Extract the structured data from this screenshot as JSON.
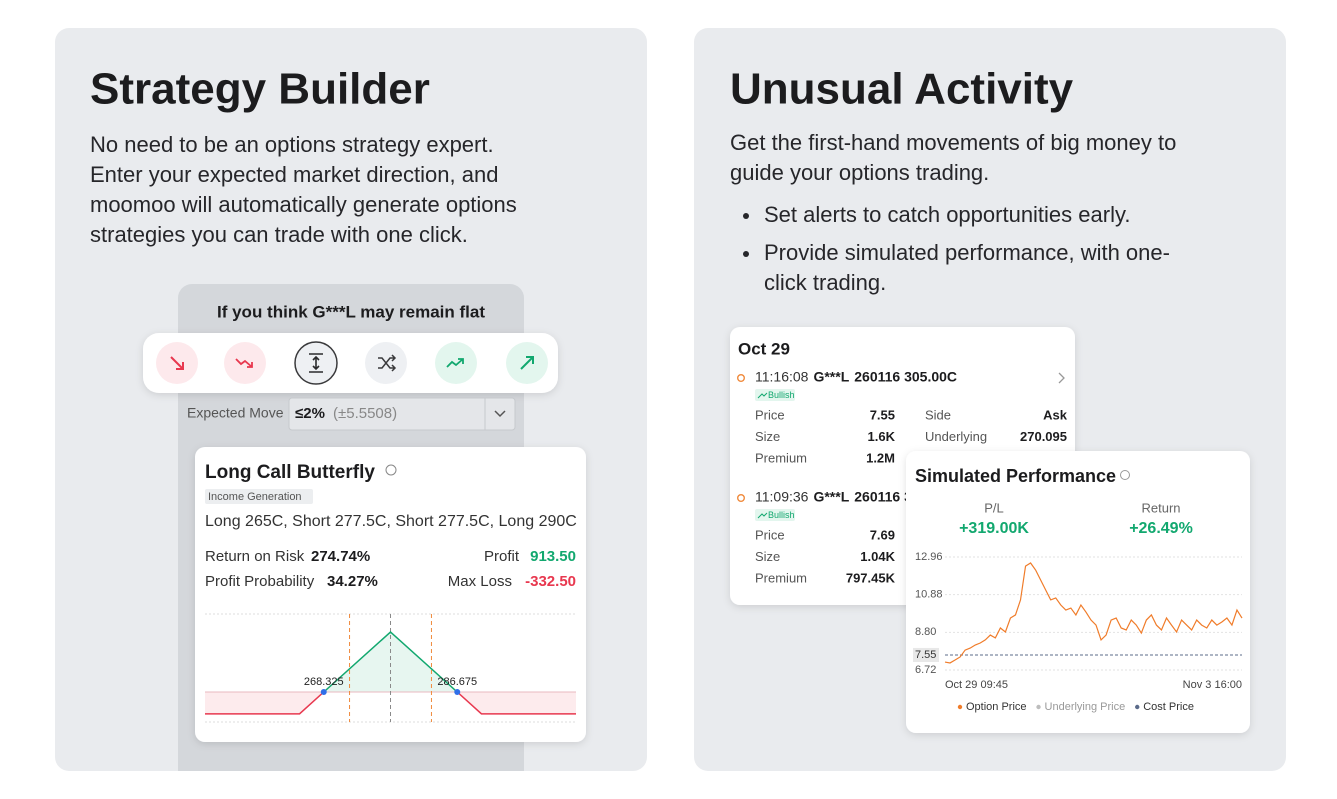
{
  "strategy_builder": {
    "title": "Strategy Builder",
    "description": [
      "No need to be an options strategy expert.",
      "Enter your expected market direction, and",
      "moomoo will automatically generate options",
      "strategies you can trade with one click."
    ],
    "prompt": "If you think G***L may remain flat",
    "expected_move": {
      "label": "Expected Move",
      "value": "≤2%",
      "detail": "(±5.5508)"
    },
    "strategy": {
      "name": "Long Call Butterfly",
      "tag": "Income Generation",
      "legs": "Long 265C, Short 277.5C, Short 277.5C, Long 290C",
      "stats": [
        {
          "label": "Return on Risk",
          "value": "274.74%"
        },
        {
          "label": "Profit",
          "value": "913.50"
        },
        {
          "label": "Profit Probability",
          "value": "34.27%"
        },
        {
          "label": "Max Loss",
          "value": "-332.50"
        }
      ]
    }
  },
  "unusual_activity": {
    "title": "Unusual Activity",
    "description": [
      "Get the first-hand movements of big money to",
      "guide your options trading."
    ],
    "bullets": [
      [
        "Set alerts to catch opportunities early."
      ],
      [
        "Provide simulated performance, with one-",
        "click trading."
      ]
    ],
    "feed": {
      "date": "Oct 29",
      "entries": [
        {
          "time": "11:16:08",
          "ticker": "G***L",
          "contract": "260116 305.00C",
          "tag": "Bullish",
          "left": [
            {
              "label": "Price",
              "value": "7.55"
            },
            {
              "label": "Size",
              "value": "1.6K"
            },
            {
              "label": "Premium",
              "value": "1.2M"
            }
          ],
          "right": [
            {
              "label": "Side",
              "value": "Ask"
            },
            {
              "label": "Underlying",
              "value": "270.095"
            }
          ]
        },
        {
          "time": "11:09:36",
          "ticker": "G***L",
          "contract": "260116 3",
          "tag": "Bullish",
          "left": [
            {
              "label": "Price",
              "value": "7.69"
            },
            {
              "label": "Size",
              "value": "1.04K"
            },
            {
              "label": "Premium",
              "value": "797.45K"
            }
          ]
        }
      ]
    },
    "performance": {
      "title": "Simulated Performance",
      "metrics": [
        {
          "label": "P/L",
          "value": "+319.00K"
        },
        {
          "label": "Return",
          "value": "+26.49%"
        }
      ]
    }
  },
  "chart_data": [
    {
      "type": "line",
      "x": [
        252,
        265,
        268.325,
        277.5,
        286.675,
        290,
        303
      ],
      "values": [
        -332.5,
        -332.5,
        0,
        913.5,
        0,
        -332.5,
        -332.5
      ],
      "xlim": [
        252,
        303
      ],
      "ylim": [
        -457,
        1188
      ],
      "colors": [
        "#12a86f",
        "#e8384f"
      ],
      "point_color": "#2f6fe8",
      "vlines": [
        271.87,
        277.5,
        283.13
      ],
      "vline_colors": [
        "#f08a3c",
        "#8a8a8a",
        "#f08a3c"
      ]
    },
    {
      "type": "line",
      "categories": [
        "Oct 29 09:45",
        null,
        null,
        null,
        null,
        null,
        null,
        null,
        null,
        null,
        null,
        null,
        null,
        null,
        null,
        null,
        null,
        null,
        null,
        null,
        null,
        null,
        null,
        null,
        null,
        null,
        null,
        null,
        null,
        null,
        null,
        null,
        null,
        null,
        null,
        null,
        null,
        null,
        null,
        null,
        null,
        null,
        null,
        null,
        null,
        null,
        null,
        null,
        null,
        null,
        null,
        null,
        null,
        null,
        null,
        null,
        null,
        null,
        null,
        "Nov 3 16:00"
      ],
      "values": [
        7.16,
        7.11,
        7.27,
        7.44,
        7.82,
        7.93,
        8.1,
        8.21,
        8.38,
        8.65,
        8.49,
        9.04,
        8.82,
        9.59,
        9.76,
        10.59,
        12.46,
        12.63,
        12.24,
        11.69,
        11.14,
        10.59,
        10.7,
        10.31,
        10.03,
        10.14,
        9.76,
        10.31,
        9.92,
        9.48,
        9.2,
        8.38,
        8.65,
        9.48,
        9.59,
        9.04,
        8.93,
        9.48,
        9.2,
        8.76,
        9.48,
        9.76,
        9.2,
        8.93,
        9.59,
        9.2,
        8.82,
        9.48,
        9.2,
        8.93,
        9.48,
        9.2,
        9.04,
        9.48,
        9.2,
        9.37,
        9.59,
        9.2,
        10.03,
        9.59
      ],
      "color": "#f07c2a",
      "ylim": [
        6.72,
        12.96
      ],
      "yticks": [
        6.72,
        {
          "value": 8.8,
          "label": "8.80"
        },
        10.88,
        12.96
      ],
      "grid": true,
      "cost_price": 7.55,
      "legend": [
        {
          "name": "Option Price",
          "color": "#f07c2a"
        },
        {
          "name": "Underlying Price",
          "color": "#bdbdbd"
        },
        {
          "name": "Cost Price",
          "color": "#5b6b8a"
        }
      ]
    }
  ]
}
